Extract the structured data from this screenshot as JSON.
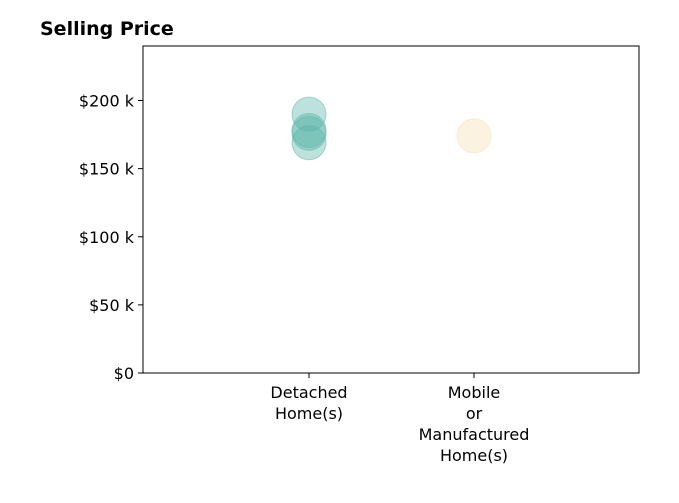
{
  "chart_data": {
    "type": "scatter",
    "title": "Selling Price",
    "xlabel": "",
    "ylabel": "",
    "categories": [
      [
        "Detached",
        "Home(s)"
      ],
      [
        "Mobile",
        "or",
        "Manufactured",
        "Home(s)"
      ]
    ],
    "y_ticks": [
      "$0",
      "$50 k",
      "$100 k",
      "$150 k",
      "$200 k"
    ],
    "y_tick_values": [
      0,
      50000,
      100000,
      150000,
      200000
    ],
    "ylim": [
      0,
      240000
    ],
    "grid": false,
    "legend": "none",
    "series": [
      {
        "category_index": 0,
        "color": "#5ab4a8",
        "values": [
          190000,
          178000,
          176000,
          169000
        ]
      },
      {
        "category_index": 1,
        "color": "#f5deb0",
        "values": [
          174000
        ]
      }
    ]
  }
}
